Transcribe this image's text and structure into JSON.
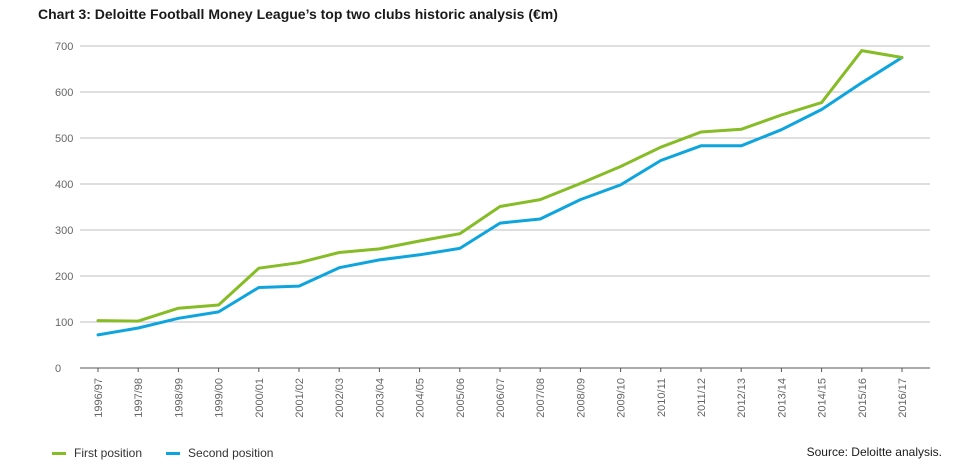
{
  "chart_data": {
    "type": "line",
    "title": "Chart 3: Deloitte Football Money League’s top two clubs historic analysis (€m)",
    "xlabel": "",
    "ylabel": "",
    "ylim": [
      0,
      700
    ],
    "yticks": [
      0,
      100,
      200,
      300,
      400,
      500,
      600,
      700
    ],
    "grid": true,
    "legend_position": "bottom-left",
    "categories": [
      "1996/97",
      "1997/98",
      "1998/99",
      "1999/00",
      "2000/01",
      "2001/02",
      "2002/03",
      "2003/04",
      "2004/05",
      "2005/06",
      "2006/07",
      "2007/08",
      "2008/09",
      "2009/10",
      "2010/11",
      "2011/12",
      "2012/13",
      "2013/14",
      "2014/15",
      "2015/16",
      "2016/17"
    ],
    "series": [
      {
        "name": "First position",
        "color": "#86bc25",
        "values": [
          103,
          102,
          130,
          137,
          217,
          229,
          251,
          259,
          276,
          292,
          351,
          366,
          401,
          438,
          480,
          513,
          519,
          550,
          577,
          690,
          675
        ]
      },
      {
        "name": "Second position",
        "color": "#0ea5de",
        "values": [
          72,
          87,
          108,
          122,
          175,
          178,
          218,
          235,
          246,
          260,
          315,
          324,
          366,
          398,
          451,
          483,
          483,
          518,
          562,
          620,
          675
        ]
      }
    ]
  },
  "source_note": "Source: Deloitte analysis."
}
